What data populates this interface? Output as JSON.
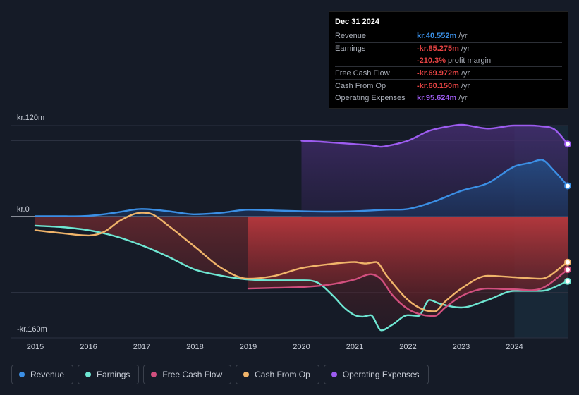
{
  "tooltip": {
    "date": "Dec 31 2024",
    "rows": [
      {
        "label": "Revenue",
        "value": "kr.40.552m",
        "unit": "/yr",
        "color": "#3b8fe5"
      },
      {
        "label": "Earnings",
        "value": "-kr.85.275m",
        "unit": "/yr",
        "color": "#e64343"
      },
      {
        "label": "",
        "value": "-210.3%",
        "unit": "profit margin",
        "color": "#e64343"
      },
      {
        "label": "Free Cash Flow",
        "value": "-kr.69.972m",
        "unit": "/yr",
        "color": "#e64343"
      },
      {
        "label": "Cash From Op",
        "value": "-kr.60.150m",
        "unit": "/yr",
        "color": "#e64343"
      },
      {
        "label": "Operating Expenses",
        "value": "kr.95.624m",
        "unit": "/yr",
        "color": "#9d5cf0"
      }
    ]
  },
  "legend": [
    {
      "label": "Revenue",
      "color": "#3b8fe5"
    },
    {
      "label": "Earnings",
      "color": "#6ee6d2"
    },
    {
      "label": "Free Cash Flow",
      "color": "#d14f7e"
    },
    {
      "label": "Cash From Op",
      "color": "#f0b46a"
    },
    {
      "label": "Operating Expenses",
      "color": "#9d5cf0"
    }
  ],
  "chart_data": {
    "type": "line",
    "ylim": [
      -160,
      120
    ],
    "y_tick_labels": [
      {
        "value": 120,
        "label": "kr.120m"
      },
      {
        "value": 0,
        "label": "kr.0"
      },
      {
        "value": -160,
        "label": "-kr.160m"
      }
    ],
    "x_ticks": [
      2015,
      2016,
      2017,
      2018,
      2019,
      2020,
      2021,
      2022,
      2023,
      2024
    ],
    "x_range": [
      2014.55,
      2025.0
    ],
    "forecast_start": 2024.0,
    "series": [
      {
        "name": "Revenue",
        "color": "#3b8fe5",
        "fill": true,
        "x": [
          2015,
          2015.5,
          2016,
          2016.5,
          2017,
          2017.5,
          2018,
          2018.5,
          2019,
          2019.5,
          2020,
          2020.5,
          2021,
          2021.3,
          2021.6,
          2022,
          2022.5,
          2023,
          2023.5,
          2024,
          2024.3,
          2024.5,
          2024.75,
          2025.0
        ],
        "y": [
          0.5,
          0.5,
          1,
          5,
          10,
          7,
          3,
          5,
          9,
          8,
          7,
          6.5,
          7,
          8,
          9,
          10,
          20,
          34,
          44,
          66,
          71,
          75,
          60,
          40.5
        ]
      },
      {
        "name": "Operating Expenses",
        "color": "#9d5cf0",
        "fill": true,
        "x": [
          2020,
          2020.5,
          2021,
          2021.3,
          2021.5,
          2021.6,
          2022,
          2022.4,
          2022.7,
          2023,
          2023.5,
          2024,
          2024.3,
          2024.5,
          2024.75,
          2025.0
        ],
        "y": [
          100,
          98,
          95.5,
          94,
          92,
          93,
          100,
          113,
          118,
          121,
          116,
          120,
          120,
          119,
          115,
          95.6
        ]
      },
      {
        "name": "Earnings",
        "color": "#6ee6d2",
        "fill": false,
        "x": [
          2015,
          2015.5,
          2016,
          2016.5,
          2017,
          2017.5,
          2018,
          2018.5,
          2019,
          2019.5,
          2020,
          2020.3,
          2020.6,
          2020.8,
          2021,
          2021.15,
          2021.3,
          2021.5,
          2021.7,
          2022,
          2022.2,
          2022.4,
          2022.6,
          2023,
          2023.5,
          2024,
          2024.5,
          2025.0
        ],
        "y": [
          -12,
          -14,
          -18,
          -26,
          -38,
          -53,
          -70,
          -78,
          -83,
          -84,
          -84,
          -87,
          -105,
          -120,
          -130,
          -132,
          -130,
          -150,
          -143,
          -130,
          -131,
          -110,
          -115,
          -120,
          -110,
          -98,
          -98,
          -85.3
        ]
      },
      {
        "name": "Free Cash Flow",
        "color": "#d14f7e",
        "fill": false,
        "x": [
          2019,
          2019.5,
          2020,
          2020.5,
          2021,
          2021.3,
          2021.5,
          2021.7,
          2022,
          2022.3,
          2022.5,
          2022.7,
          2023,
          2023.5,
          2024,
          2024.5,
          2025.0
        ],
        "y": [
          -95,
          -94,
          -93,
          -90,
          -83,
          -76,
          -83,
          -103,
          -122,
          -130,
          -131,
          -120,
          -105,
          -95,
          -96,
          -95,
          -70
        ]
      },
      {
        "name": "Cash From Op",
        "color": "#f0b46a",
        "fill": false,
        "x": [
          2015,
          2015.5,
          2016,
          2016.3,
          2016.6,
          2017,
          2017.2,
          2017.5,
          2018,
          2018.5,
          2019,
          2019.5,
          2020,
          2020.5,
          2021,
          2021.2,
          2021.4,
          2021.6,
          2022,
          2022.3,
          2022.5,
          2022.7,
          2023,
          2023.5,
          2024,
          2024.5,
          2025.0
        ],
        "y": [
          -18,
          -22,
          -25,
          -20,
          -5,
          5,
          3,
          -12,
          -40,
          -68,
          -82,
          -78,
          -68,
          -63,
          -60,
          -62,
          -60,
          -78,
          -110,
          -123,
          -125,
          -112,
          -95,
          -78,
          -80,
          -82,
          -60.2
        ]
      }
    ],
    "shaded_areas": [
      {
        "name": "Earnings",
        "x_from": 2015,
        "x_to": 2019,
        "color": "#6ee6d2"
      },
      {
        "name": "Cash From Op",
        "x_from": 2016.5,
        "x_to": 2017.5,
        "color": "#d14f7e"
      },
      {
        "name": "Free Cash Flow",
        "x_from": 2019,
        "x_to": 2024,
        "color": "#d14f7e"
      }
    ]
  }
}
